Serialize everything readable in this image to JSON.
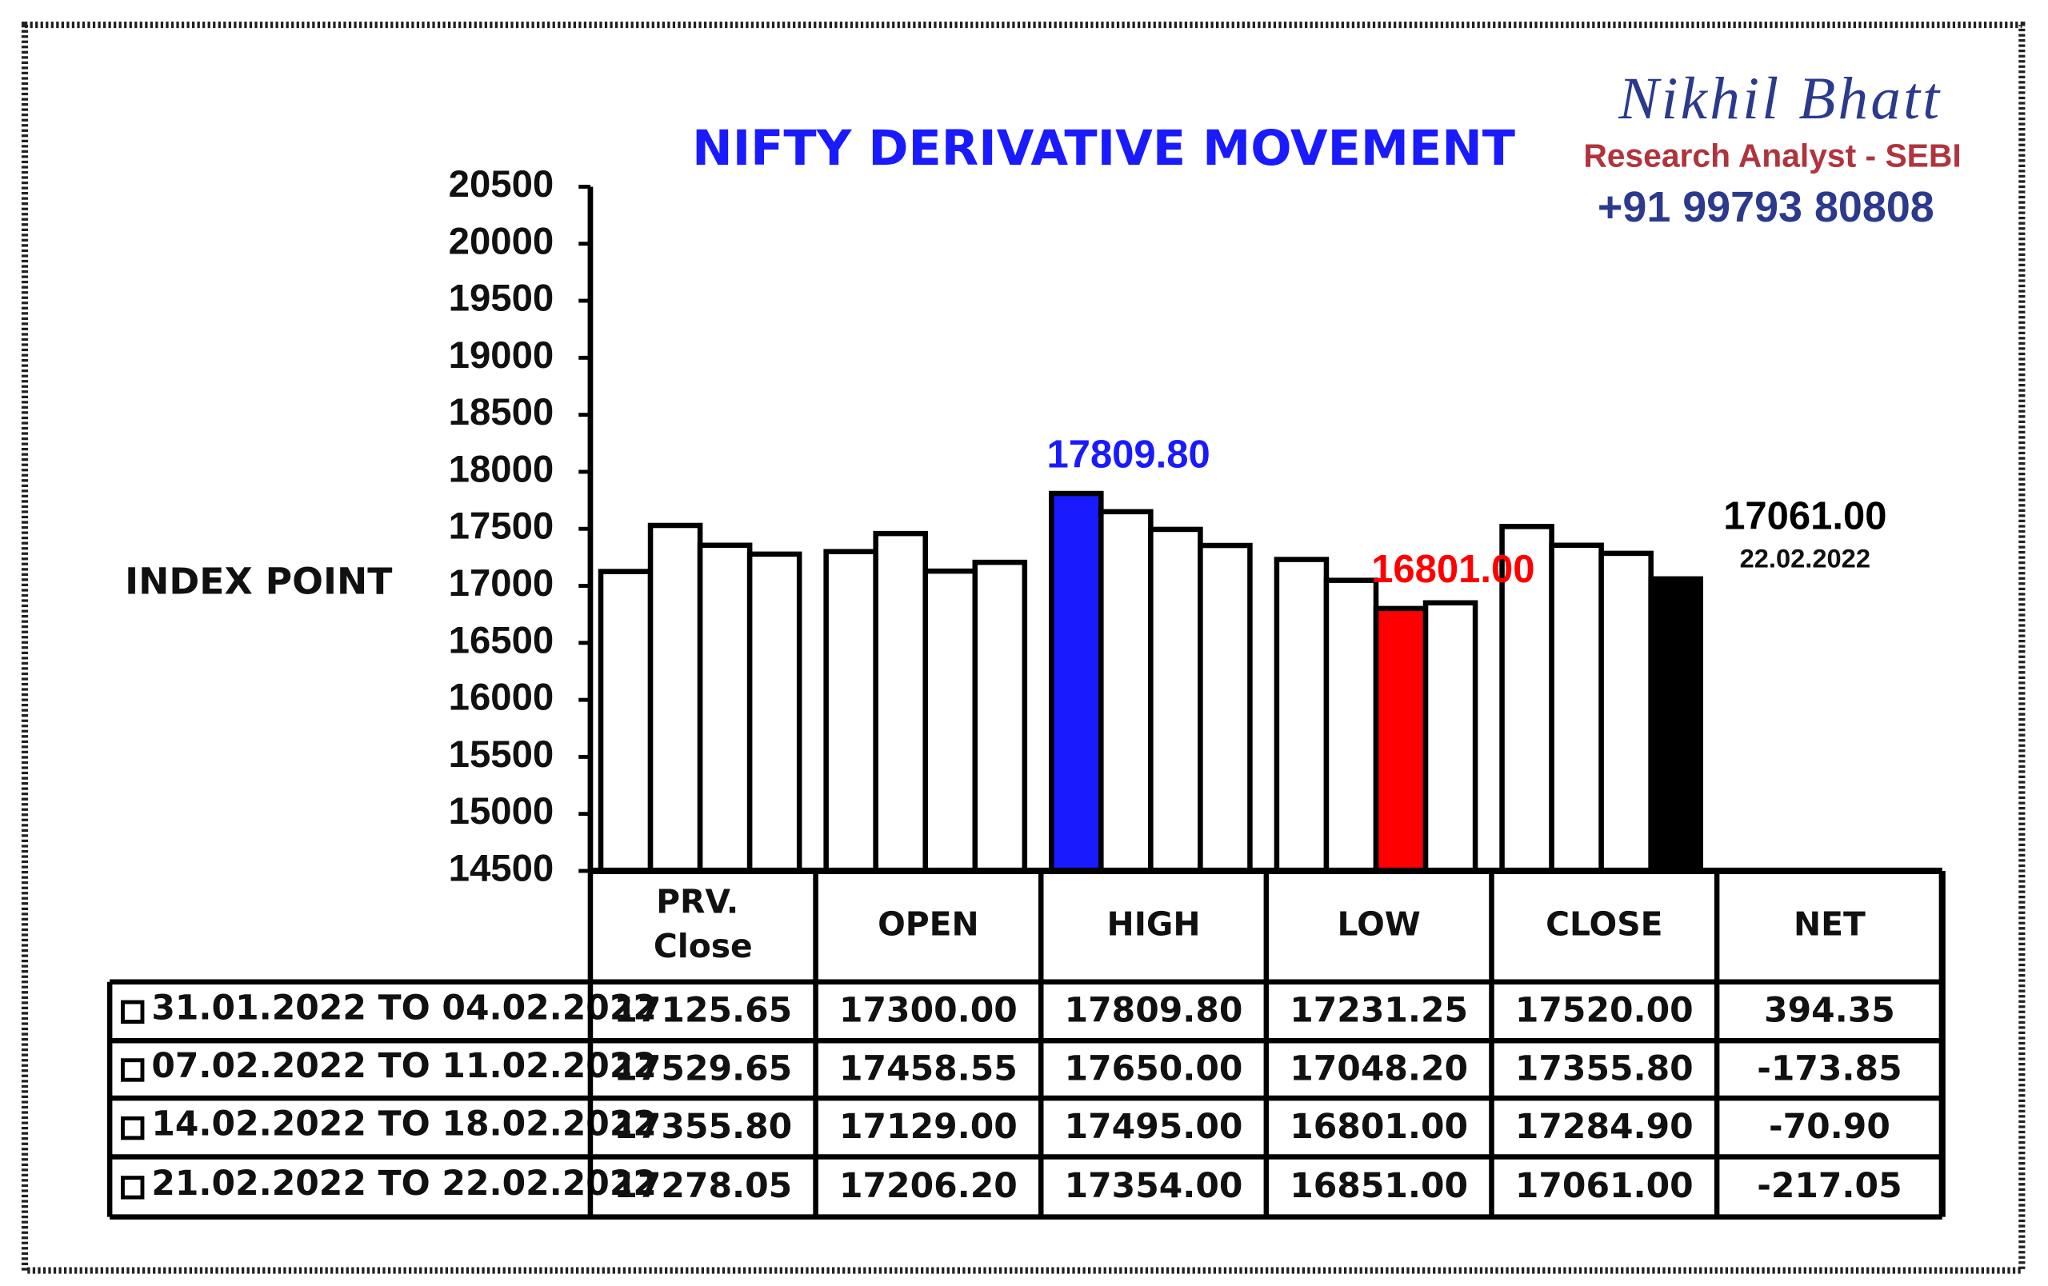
{
  "header": {
    "name": "Nikhil Bhatt",
    "role": "Research Analyst - SEBI",
    "phone": "+91 99793 80808"
  },
  "chart_data": {
    "type": "bar",
    "title": "NIFTY DERIVATIVE MOVEMENT",
    "y_label": "INDEX POINT",
    "categories": [
      "PRV. Close",
      "OPEN",
      "HIGH",
      "LOW",
      "CLOSE"
    ],
    "net_header": "NET",
    "ylim": [
      14500,
      20500
    ],
    "yticks": [
      14500,
      15000,
      15500,
      16000,
      16500,
      17000,
      17500,
      18000,
      18500,
      19000,
      19500,
      20000,
      20500
    ],
    "series": [
      {
        "name": "31.01.2022 TO 04.02.2022",
        "color": "#ffffff",
        "values": [
          17125.65,
          17300,
          17809.8,
          17231.25,
          17520
        ],
        "value_labels": [
          "17125.65",
          "17300.00",
          "17809.80",
          "17231.25",
          "17520.00"
        ],
        "net": 394.35,
        "net_label": "394.35"
      },
      {
        "name": "07.02.2022 TO 11.02.2022",
        "color": "#ffffff",
        "values": [
          17529.65,
          17458.55,
          17650,
          17048.2,
          17355.8
        ],
        "value_labels": [
          "17529.65",
          "17458.55",
          "17650.00",
          "17048.20",
          "17355.80"
        ],
        "net": -173.85,
        "net_label": "-173.85"
      },
      {
        "name": "14.02.2022 TO 18.02.2022",
        "color": "#ffffff",
        "values": [
          17355.8,
          17129,
          17495,
          16801,
          17284.9
        ],
        "value_labels": [
          "17355.80",
          "17129.00",
          "17495.00",
          "16801.00",
          "17284.90"
        ],
        "net": -70.9,
        "net_label": "-70.90"
      },
      {
        "name": "21.02.2022 TO 22.02.2022",
        "color": "#ffffff",
        "values": [
          17278.05,
          17206.2,
          17354,
          16851,
          17061
        ],
        "value_labels": [
          "17278.05",
          "17206.20",
          "17354.00",
          "16851.00",
          "17061.00"
        ],
        "net": -217.05,
        "net_label": "-217.05"
      }
    ],
    "highlights": [
      {
        "series": 0,
        "index": 2,
        "color": "#1a1aff"
      },
      {
        "series": 2,
        "index": 3,
        "color": "#ff0000"
      },
      {
        "series": 3,
        "index": 4,
        "color": "#000000",
        "note": "22.02.2022"
      }
    ]
  }
}
